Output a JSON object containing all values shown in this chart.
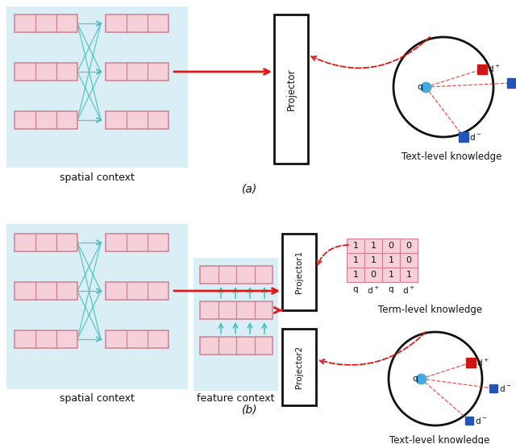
{
  "bg_color": "#ffffff",
  "light_blue_bg": "#daeef5",
  "pink_box_face": "#f5d0d8",
  "pink_box_edge": "#d08090",
  "teal_color": "#45bfbf",
  "red_color": "#e01818",
  "blue_dot_color": "#45aadd",
  "red_square_color": "#cc1515",
  "blue_square_color": "#2255bb",
  "black_color": "#111111",
  "panel_a_label": "(a)",
  "panel_b_label": "(b)",
  "spatial_context_label": "spatial context",
  "feature_context_label": "feature context",
  "projector_label": "Projector",
  "projector1_label": "Projector1",
  "projector2_label": "Projector2",
  "text_level_label": "Text-level knowledge",
  "term_level_label": "Term-level knowledge",
  "matrix": [
    [
      1,
      1,
      0,
      0
    ],
    [
      1,
      1,
      1,
      0
    ],
    [
      1,
      0,
      1,
      1
    ]
  ],
  "col_labels": [
    "q",
    "d+",
    "q",
    "d+"
  ]
}
